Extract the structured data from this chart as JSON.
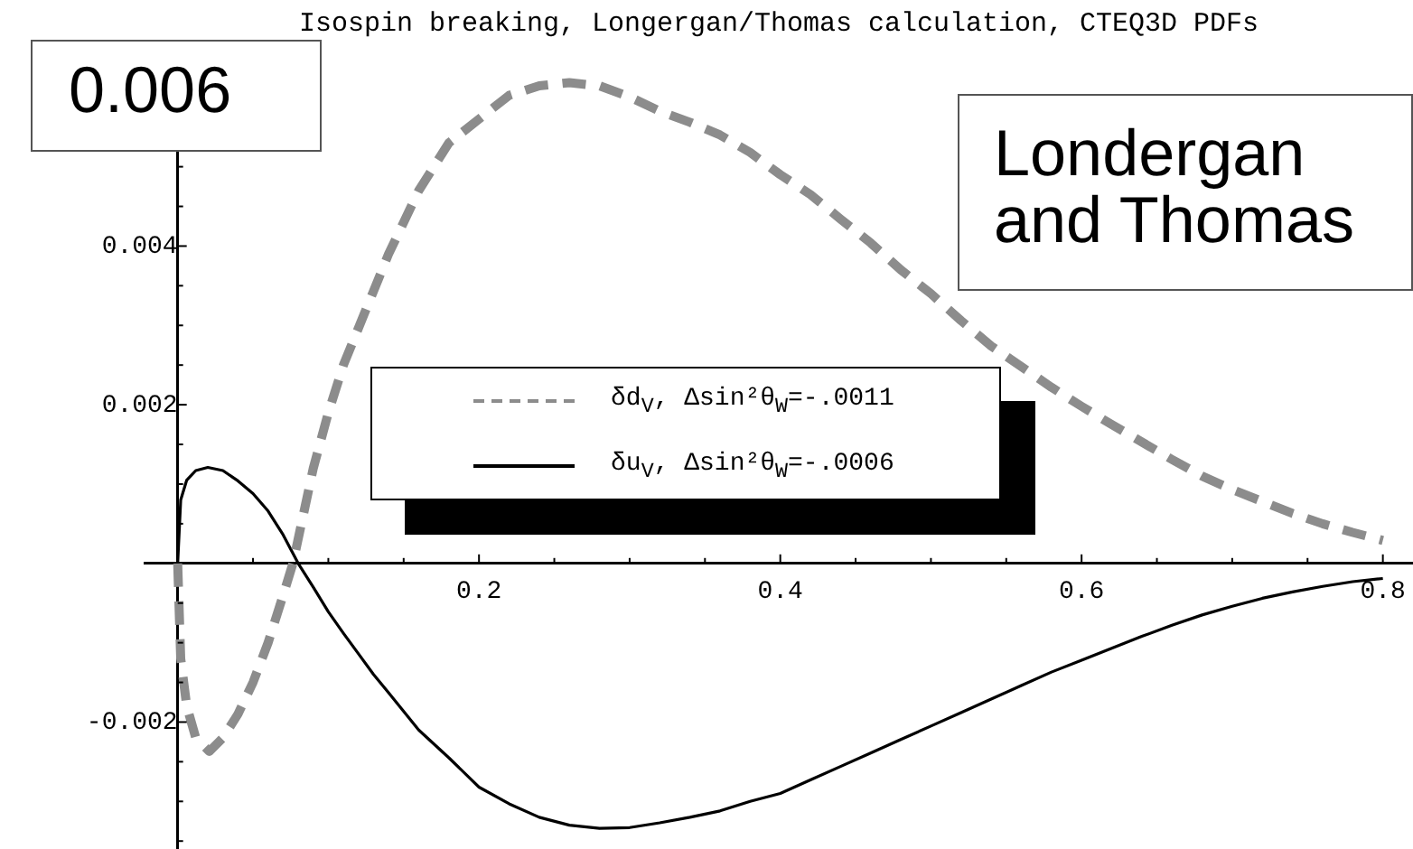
{
  "chart_data": {
    "type": "line",
    "title": "Isospin breaking, Longergan/Thomas calculation, CTEQ3D PDFs",
    "annotations": [
      "0.006",
      "Londergan and Thomas"
    ],
    "series": [
      {
        "name": "δd$_{V}$, Δsin²θ$_{W}$=-.0011",
        "color": "#8c8c8c",
        "line_style": "dashed",
        "x": [
          0,
          0.002,
          0.006,
          0.012,
          0.021,
          0.03,
          0.04,
          0.05,
          0.06,
          0.07,
          0.0765,
          0.09,
          0.1,
          0.11,
          0.125,
          0.14,
          0.16,
          0.18,
          0.2,
          0.22,
          0.24,
          0.26,
          0.28,
          0.3,
          0.32,
          0.34,
          0.36,
          0.38,
          0.4,
          0.42,
          0.44,
          0.46,
          0.48,
          0.5,
          0.52,
          0.54,
          0.56,
          0.58,
          0.6,
          0.62,
          0.64,
          0.66,
          0.68,
          0.7,
          0.72,
          0.74,
          0.76,
          0.78,
          0.8
        ],
        "values": [
          0,
          -0.0012,
          -0.0018,
          -0.0022,
          -0.00237,
          -0.0022,
          -0.0019,
          -0.0015,
          -0.001,
          -0.0004,
          0,
          0.0012,
          0.0019,
          0.0025,
          0.0032,
          0.0039,
          0.0047,
          0.0053,
          0.0056,
          0.0059,
          0.00602,
          0.00606,
          0.00602,
          0.00588,
          0.0057,
          0.00556,
          0.0054,
          0.00518,
          0.0049,
          0.00465,
          0.00434,
          0.00404,
          0.0037,
          0.0034,
          0.00306,
          0.00274,
          0.00248,
          0.00222,
          0.00198,
          0.00175,
          0.00153,
          0.00131,
          0.0011,
          0.00093,
          0.00078,
          0.00063,
          0.0005,
          0.00039,
          0.00029
        ]
      },
      {
        "name": "δu$_{V}$, Δsin²θ$_{W}$=-.0006",
        "color": "#000000",
        "line_style": "solid",
        "x": [
          0,
          0.002,
          0.006,
          0.012,
          0.02,
          0.03,
          0.04,
          0.05,
          0.06,
          0.07,
          0.08,
          0.09,
          0.1,
          0.11,
          0.12,
          0.13,
          0.14,
          0.16,
          0.18,
          0.2,
          0.22,
          0.24,
          0.26,
          0.28,
          0.3,
          0.32,
          0.34,
          0.36,
          0.38,
          0.4,
          0.42,
          0.44,
          0.46,
          0.48,
          0.5,
          0.52,
          0.54,
          0.56,
          0.58,
          0.6,
          0.62,
          0.64,
          0.66,
          0.68,
          0.7,
          0.72,
          0.74,
          0.76,
          0.78,
          0.8
        ],
        "values": [
          0,
          0.0008,
          0.00105,
          0.00117,
          0.00121,
          0.00117,
          0.00104,
          0.00088,
          0.00066,
          0.00036,
          0,
          -0.0003,
          -0.00061,
          -0.00088,
          -0.00114,
          -0.0014,
          -0.00163,
          -0.0021,
          -0.00245,
          -0.00282,
          -0.00303,
          -0.0032,
          -0.0033,
          -0.00334,
          -0.00333,
          -0.00327,
          -0.0032,
          -0.00312,
          -0.003,
          -0.0029,
          -0.00273,
          -0.00256,
          -0.00239,
          -0.00222,
          -0.00205,
          -0.00188,
          -0.00171,
          -0.00154,
          -0.00137,
          -0.00122,
          -0.00107,
          -0.00092,
          -0.00078,
          -0.00065,
          -0.00054,
          -0.00044,
          -0.00036,
          -0.00029,
          -0.00023,
          -0.00019
        ]
      }
    ],
    "xlim": [
      -0.022,
      0.82
    ],
    "ylim": [
      -0.0036,
      0.0062
    ],
    "xticks": [
      {
        "value": 0.05,
        "label": null
      },
      {
        "value": 0.1,
        "label": null
      },
      {
        "value": 0.15,
        "label": null
      },
      0.2,
      {
        "value": 0.25,
        "label": null
      },
      {
        "value": 0.3,
        "label": null
      },
      {
        "value": 0.35,
        "label": null
      },
      0.4,
      {
        "value": 0.45,
        "label": null
      },
      {
        "value": 0.5,
        "label": null
      },
      {
        "value": 0.55,
        "label": null
      },
      0.6,
      {
        "value": 0.65,
        "label": null
      },
      {
        "value": 0.7,
        "label": null
      },
      {
        "value": 0.75,
        "label": null
      },
      0.8
    ],
    "yticks": [
      {
        "value": -0.0035,
        "label": null
      },
      {
        "value": -0.003,
        "label": null
      },
      {
        "value": -0.0025,
        "label": null
      },
      -0.002,
      {
        "value": -0.0015,
        "label": null
      },
      {
        "value": -0.001,
        "label": null
      },
      {
        "value": -0.0005,
        "label": null
      },
      {
        "value": 0.0005,
        "label": null
      },
      {
        "value": 0.001,
        "label": null
      },
      {
        "value": 0.0015,
        "label": null
      },
      0.002,
      {
        "value": 0.0025,
        "label": null
      },
      {
        "value": 0.003,
        "label": null
      },
      {
        "value": 0.0035,
        "label": null
      },
      0.004,
      {
        "value": 0.0045,
        "label": null
      },
      {
        "value": 0.005,
        "label": null
      }
    ],
    "grid": false,
    "legend": "center",
    "marker": "none"
  }
}
